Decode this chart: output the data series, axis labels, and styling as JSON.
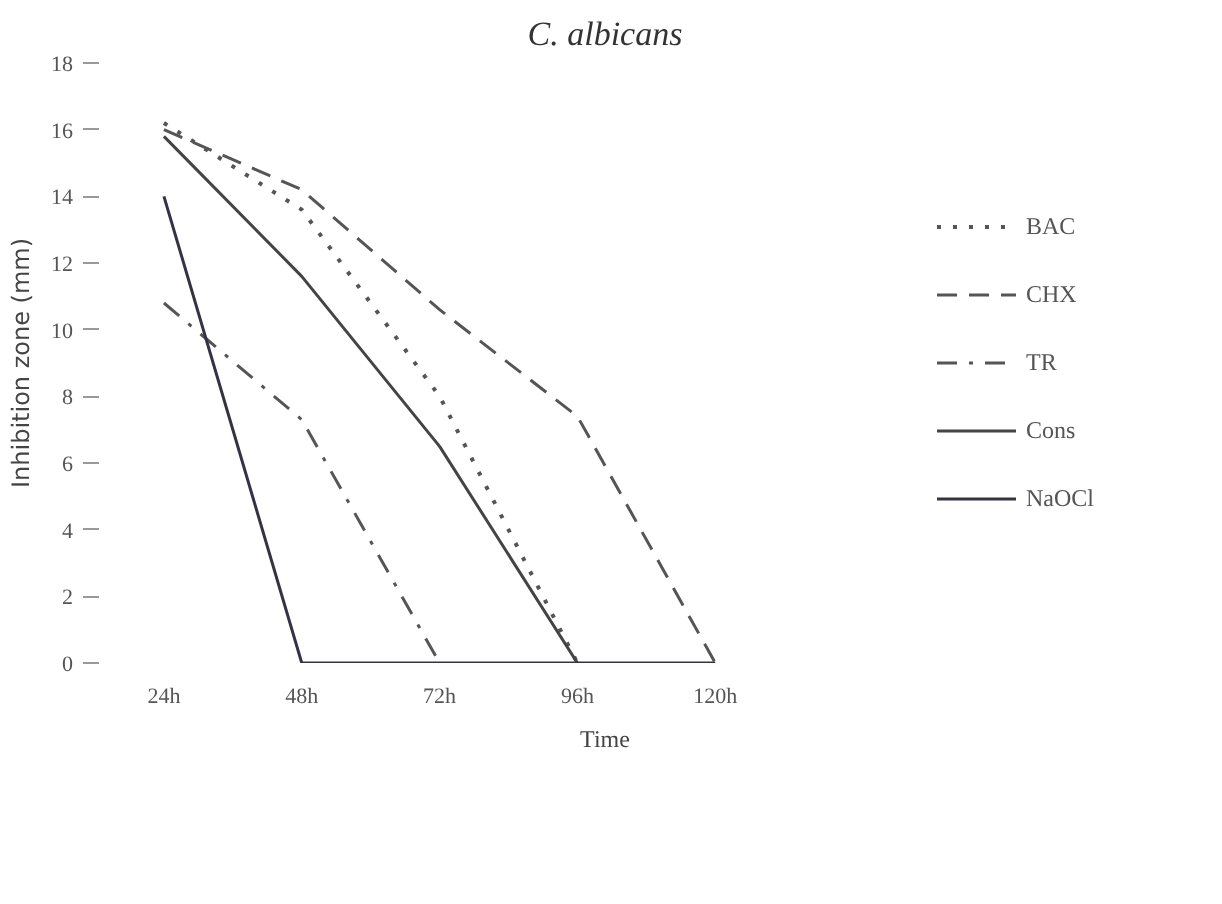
{
  "chart_data": {
    "type": "line",
    "title": "C. albicans",
    "xlabel": "Time",
    "ylabel": "Inhibition zone (mm)",
    "categories": [
      "24h",
      "48h",
      "72h",
      "96h",
      "120h"
    ],
    "ylim": [
      0,
      18
    ],
    "yticks": [
      0,
      2,
      4,
      6,
      8,
      10,
      12,
      14,
      16,
      18
    ],
    "grid": false,
    "legend": "right",
    "marker": "none",
    "series": [
      {
        "name": "BAC",
        "color": "#555555",
        "line_style": "dotted",
        "values": [
          16.2,
          13.6,
          8.0,
          0,
          null
        ]
      },
      {
        "name": "CHX",
        "color": "#555555",
        "line_style": "dashed",
        "values": [
          16.0,
          14.2,
          10.6,
          7.4,
          0
        ]
      },
      {
        "name": "TR",
        "color": "#555555",
        "line_style": "dashdot",
        "values": [
          10.8,
          7.3,
          0,
          null,
          null
        ]
      },
      {
        "name": "Cons",
        "color": "#444444",
        "line_style": "solid",
        "values": [
          15.8,
          11.6,
          6.5,
          0,
          null
        ]
      },
      {
        "name": "NaOCl",
        "color": "#333344",
        "line_style": "solid",
        "values": [
          14.0,
          0,
          0,
          0,
          0
        ]
      }
    ]
  }
}
